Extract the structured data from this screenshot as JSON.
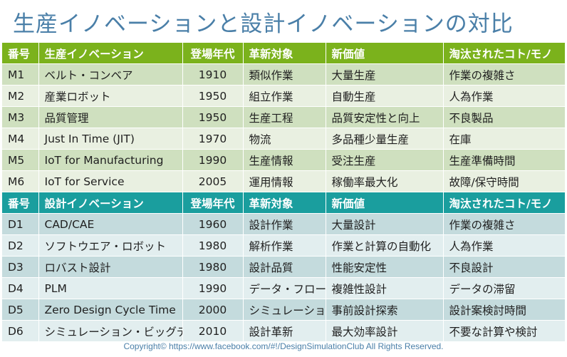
{
  "title": "生産イノベーションと設計イノベーションの対比",
  "manufacturing": {
    "header": [
      "番号",
      "生産イノベーション",
      "登場年代",
      "革新対象",
      "新価値",
      "淘汰されたコト/モノ"
    ],
    "rows": [
      [
        "M1",
        "ベルト・コンベア",
        "1910",
        "類似作業",
        "大量生産",
        "作業の複雑さ"
      ],
      [
        "M2",
        "産業ロボット",
        "1950",
        "組立作業",
        "自動生産",
        "人為作業"
      ],
      [
        "M3",
        "品質管理",
        "1950",
        "生産工程",
        "品質安定性と向上",
        "不良製品"
      ],
      [
        "M4",
        "Just In Time (JIT)",
        "1970",
        "物流",
        "多品種少量生産",
        "在庫"
      ],
      [
        "M5",
        "IoT for Manufacturing",
        "1990",
        "生産情報",
        "受注生産",
        "生産準備時間"
      ],
      [
        "M6",
        "IoT for Service",
        "2005",
        "運用情報",
        "稼働率最大化",
        "故障/保守時間"
      ]
    ]
  },
  "design": {
    "header": [
      "番号",
      "設計イノベーション",
      "登場年代",
      "革新対象",
      "新価値",
      "淘汰されたコト/モノ"
    ],
    "rows": [
      [
        "D1",
        "CAD/CAE",
        "1960",
        "設計作業",
        "大量設計",
        "作業の複雑さ"
      ],
      [
        "D2",
        "ソフトウエア・ロボット",
        "1980",
        "解析作業",
        "作業と計算の自動化",
        "人為作業"
      ],
      [
        "D3",
        "ロバスト設計",
        "1980",
        "設計品質",
        "性能安定性",
        "不良設計"
      ],
      [
        "D4",
        "PLM",
        "1990",
        "データ・フロー",
        "複雑性設計",
        "データの滞留"
      ],
      [
        "D5",
        "Zero Design Cycle Time",
        "2000",
        "シミュレーション",
        "事前設計探索",
        "設計案検討時間"
      ],
      [
        "D6",
        "シミュレーション・ビッグデータ",
        "2010",
        "設計革新",
        "最大効率設計",
        "不要な計算や検討"
      ]
    ]
  },
  "copyright": "Copyright© https://www.facebook.com/#!/DesignSimulationClub   All Rights Reserved.",
  "colors": {
    "title": "#4a7fa8",
    "manufacturing_header": "#7bb21c",
    "design_header": "#1a9e9e",
    "manufacturing_row_dark": "#cfe0bf",
    "manufacturing_row_light": "#e9f0e1",
    "design_row_dark": "#c4dbdd",
    "design_row_light": "#e2eeef"
  }
}
